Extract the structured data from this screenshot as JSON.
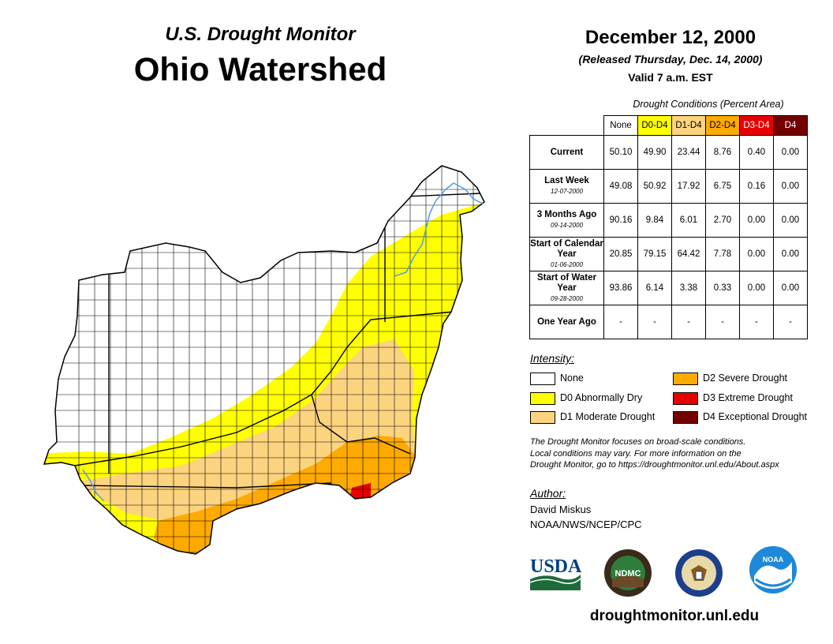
{
  "header": {
    "subtitle": "U.S. Drought Monitor",
    "title": "Ohio Watershed",
    "date": "December 12, 2000",
    "released": "(Released Thursday, Dec. 14, 2000)",
    "valid": "Valid 7 a.m. EST"
  },
  "table": {
    "caption": "Drought Conditions (Percent Area)",
    "columns": [
      "None",
      "D0-D4",
      "D1-D4",
      "D2-D4",
      "D3-D4",
      "D4"
    ],
    "rows": [
      {
        "label": "Current",
        "date": "",
        "values": [
          "50.10",
          "49.90",
          "23.44",
          "8.76",
          "0.40",
          "0.00"
        ]
      },
      {
        "label": "Last Week",
        "date": "12-07-2000",
        "values": [
          "49.08",
          "50.92",
          "17.92",
          "6.75",
          "0.16",
          "0.00"
        ]
      },
      {
        "label": "3 Months Ago",
        "date": "09-14-2000",
        "values": [
          "90.16",
          "9.84",
          "6.01",
          "2.70",
          "0.00",
          "0.00"
        ]
      },
      {
        "label": "Start of Calendar Year",
        "date": "01-06-2000",
        "values": [
          "20.85",
          "79.15",
          "64.42",
          "7.78",
          "0.00",
          "0.00"
        ]
      },
      {
        "label": "Start of Water Year",
        "date": "09-28-2000",
        "values": [
          "93.86",
          "6.14",
          "3.38",
          "0.33",
          "0.00",
          "0.00"
        ]
      },
      {
        "label": "One Year Ago",
        "date": "",
        "values": [
          "-",
          "-",
          "-",
          "-",
          "-",
          "-"
        ]
      }
    ]
  },
  "legend": {
    "title": "Intensity:",
    "items": [
      {
        "label": "None",
        "color": "#ffffff"
      },
      {
        "label": "D0 Abnormally Dry",
        "color": "#ffff00"
      },
      {
        "label": "D1 Moderate Drought",
        "color": "#fcd37f"
      },
      {
        "label": "D2 Severe Drought",
        "color": "#ffaa00"
      },
      {
        "label": "D3 Extreme Drought",
        "color": "#e60000"
      },
      {
        "label": "D4 Exceptional Drought",
        "color": "#730000"
      }
    ]
  },
  "note": {
    "line1": "The Drought Monitor focuses on broad-scale conditions.",
    "line2": "Local conditions may vary. For more information on the",
    "line3": "Drought Monitor, go to https://droughtmonitor.unl.edu/About.aspx"
  },
  "author": {
    "title": "Author:",
    "name": "David Miskus",
    "org": "NOAA/NWS/NCEP/CPC"
  },
  "logos": {
    "usda": "USDA",
    "ndmc": "NDMC",
    "noaa": "NOAA"
  },
  "footer": {
    "url": "droughtmonitor.unl.edu"
  },
  "map": {
    "colors": {
      "none": "#ffffff",
      "d0": "#ffff00",
      "d1": "#fcd37f",
      "d2": "#ffaa00",
      "d3": "#e60000",
      "river": "#4f9de0"
    }
  }
}
